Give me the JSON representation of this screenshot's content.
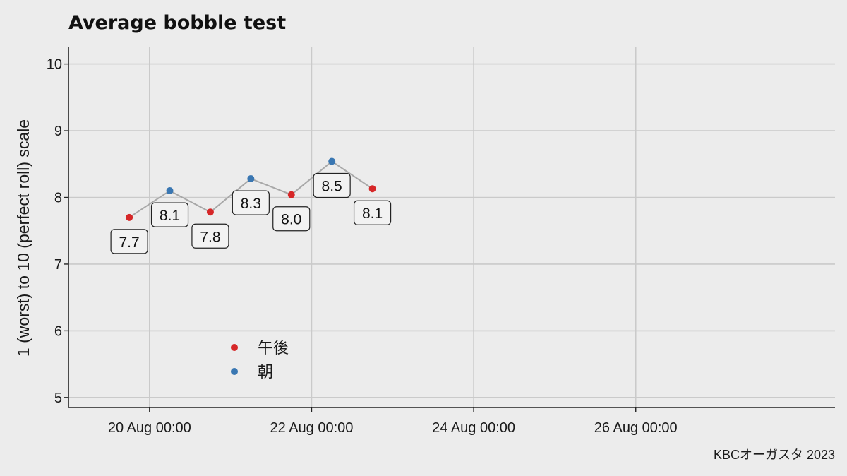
{
  "chart_data": {
    "type": "line",
    "title": "Average bobble test",
    "ylabel": "1 (worst) to 10 (perfect roll) scale",
    "xlabel": "",
    "caption": "KBCオーガスタ 2023",
    "ylim": [
      4.85,
      10.25
    ],
    "xlim": [
      "2023-08-19T00:00",
      "2023-08-28T11:00"
    ],
    "y_ticks": [
      5,
      6,
      7,
      8,
      9,
      10
    ],
    "x_ticks": [
      {
        "t": "2023-08-20T00:00",
        "label": "20 Aug 00:00"
      },
      {
        "t": "2023-08-22T00:00",
        "label": "22 Aug 00:00"
      },
      {
        "t": "2023-08-24T00:00",
        "label": "24 Aug 00:00"
      },
      {
        "t": "2023-08-26T00:00",
        "label": "26 Aug 00:00"
      }
    ],
    "grid": true,
    "legend_position": "bottom-left inside",
    "series": [
      {
        "name": "午後",
        "color": "#d62728"
      },
      {
        "name": "朝",
        "color": "#3a77b2"
      }
    ],
    "points": [
      {
        "t": "2023-08-19T18:00",
        "value": 7.7,
        "label": "7.7",
        "series": "午後"
      },
      {
        "t": "2023-08-20T06:00",
        "value": 8.1,
        "label": "8.1",
        "series": "朝"
      },
      {
        "t": "2023-08-20T18:00",
        "value": 7.78,
        "label": "7.8",
        "series": "午後"
      },
      {
        "t": "2023-08-21T06:00",
        "value": 8.28,
        "label": "8.3",
        "series": "朝"
      },
      {
        "t": "2023-08-21T18:00",
        "value": 8.04,
        "label": "8.0",
        "series": "午後"
      },
      {
        "t": "2023-08-22T06:00",
        "value": 8.54,
        "label": "8.5",
        "series": "朝"
      },
      {
        "t": "2023-08-22T18:00",
        "value": 8.13,
        "label": "8.1",
        "series": "午後"
      }
    ],
    "line_color": "#a8a8a8"
  }
}
